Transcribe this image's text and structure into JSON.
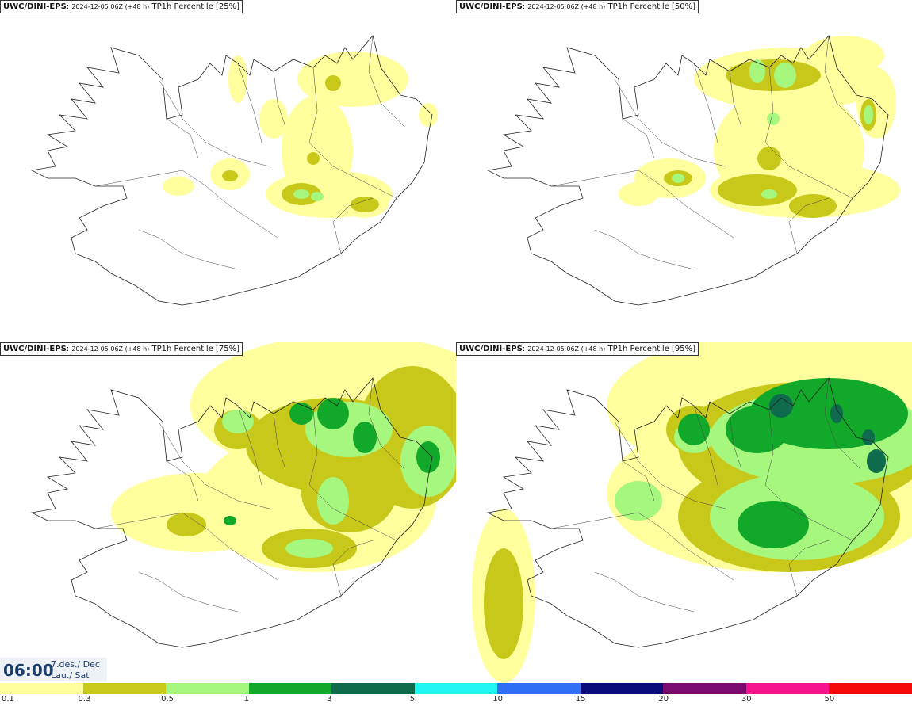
{
  "panels": [
    {
      "model": "UWC/DINI-EPS",
      "run": "2024-12-05 06Z (+48 h)",
      "field": "TP1h Percentile [25%]",
      "percentile": 25
    },
    {
      "model": "UWC/DINI-EPS",
      "run": "2024-12-05 06Z (+48 h)",
      "field": "TP1h Percentile [50%]",
      "percentile": 50
    },
    {
      "model": "UWC/DINI-EPS",
      "run": "2024-12-05 06Z (+48 h)",
      "field": "TP1h Percentile [75%]",
      "percentile": 75
    },
    {
      "model": "UWC/DINI-EPS",
      "run": "2024-12-05 06Z (+48 h)",
      "field": "TP1h Percentile [95%]",
      "percentile": 95
    }
  ],
  "valid_time": {
    "time": "06:00",
    "date": "7.des./ Dec",
    "day": "Lau./ Sat"
  },
  "legend": {
    "ticks": [
      "0.1",
      "0.3",
      "0.5",
      "1",
      "3",
      "5",
      "10",
      "15",
      "20",
      "30",
      "50"
    ],
    "colors": [
      "#ffff9e",
      "#c8c81a",
      "#a6f77d",
      "#12a82a",
      "#0e6b4c",
      "#1ff5f0",
      "#2f6ef5",
      "#0a0a78",
      "#7a0a6e",
      "#f5148c",
      "#f50a0a"
    ]
  }
}
